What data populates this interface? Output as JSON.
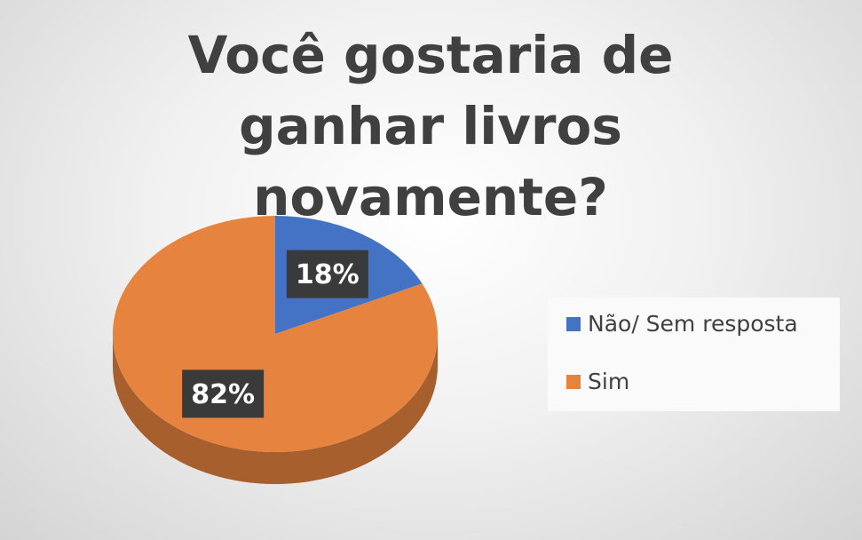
{
  "chart_data": {
    "type": "pie",
    "title": "Você gostaria de ganhar livros novamente?",
    "categories": [
      "Não/ Sem resposta",
      "Sim"
    ],
    "values": [
      18,
      82
    ],
    "value_labels": [
      "18%",
      "82%"
    ],
    "colors": [
      "#4472c4",
      "#e6843f"
    ],
    "legend": "right"
  }
}
